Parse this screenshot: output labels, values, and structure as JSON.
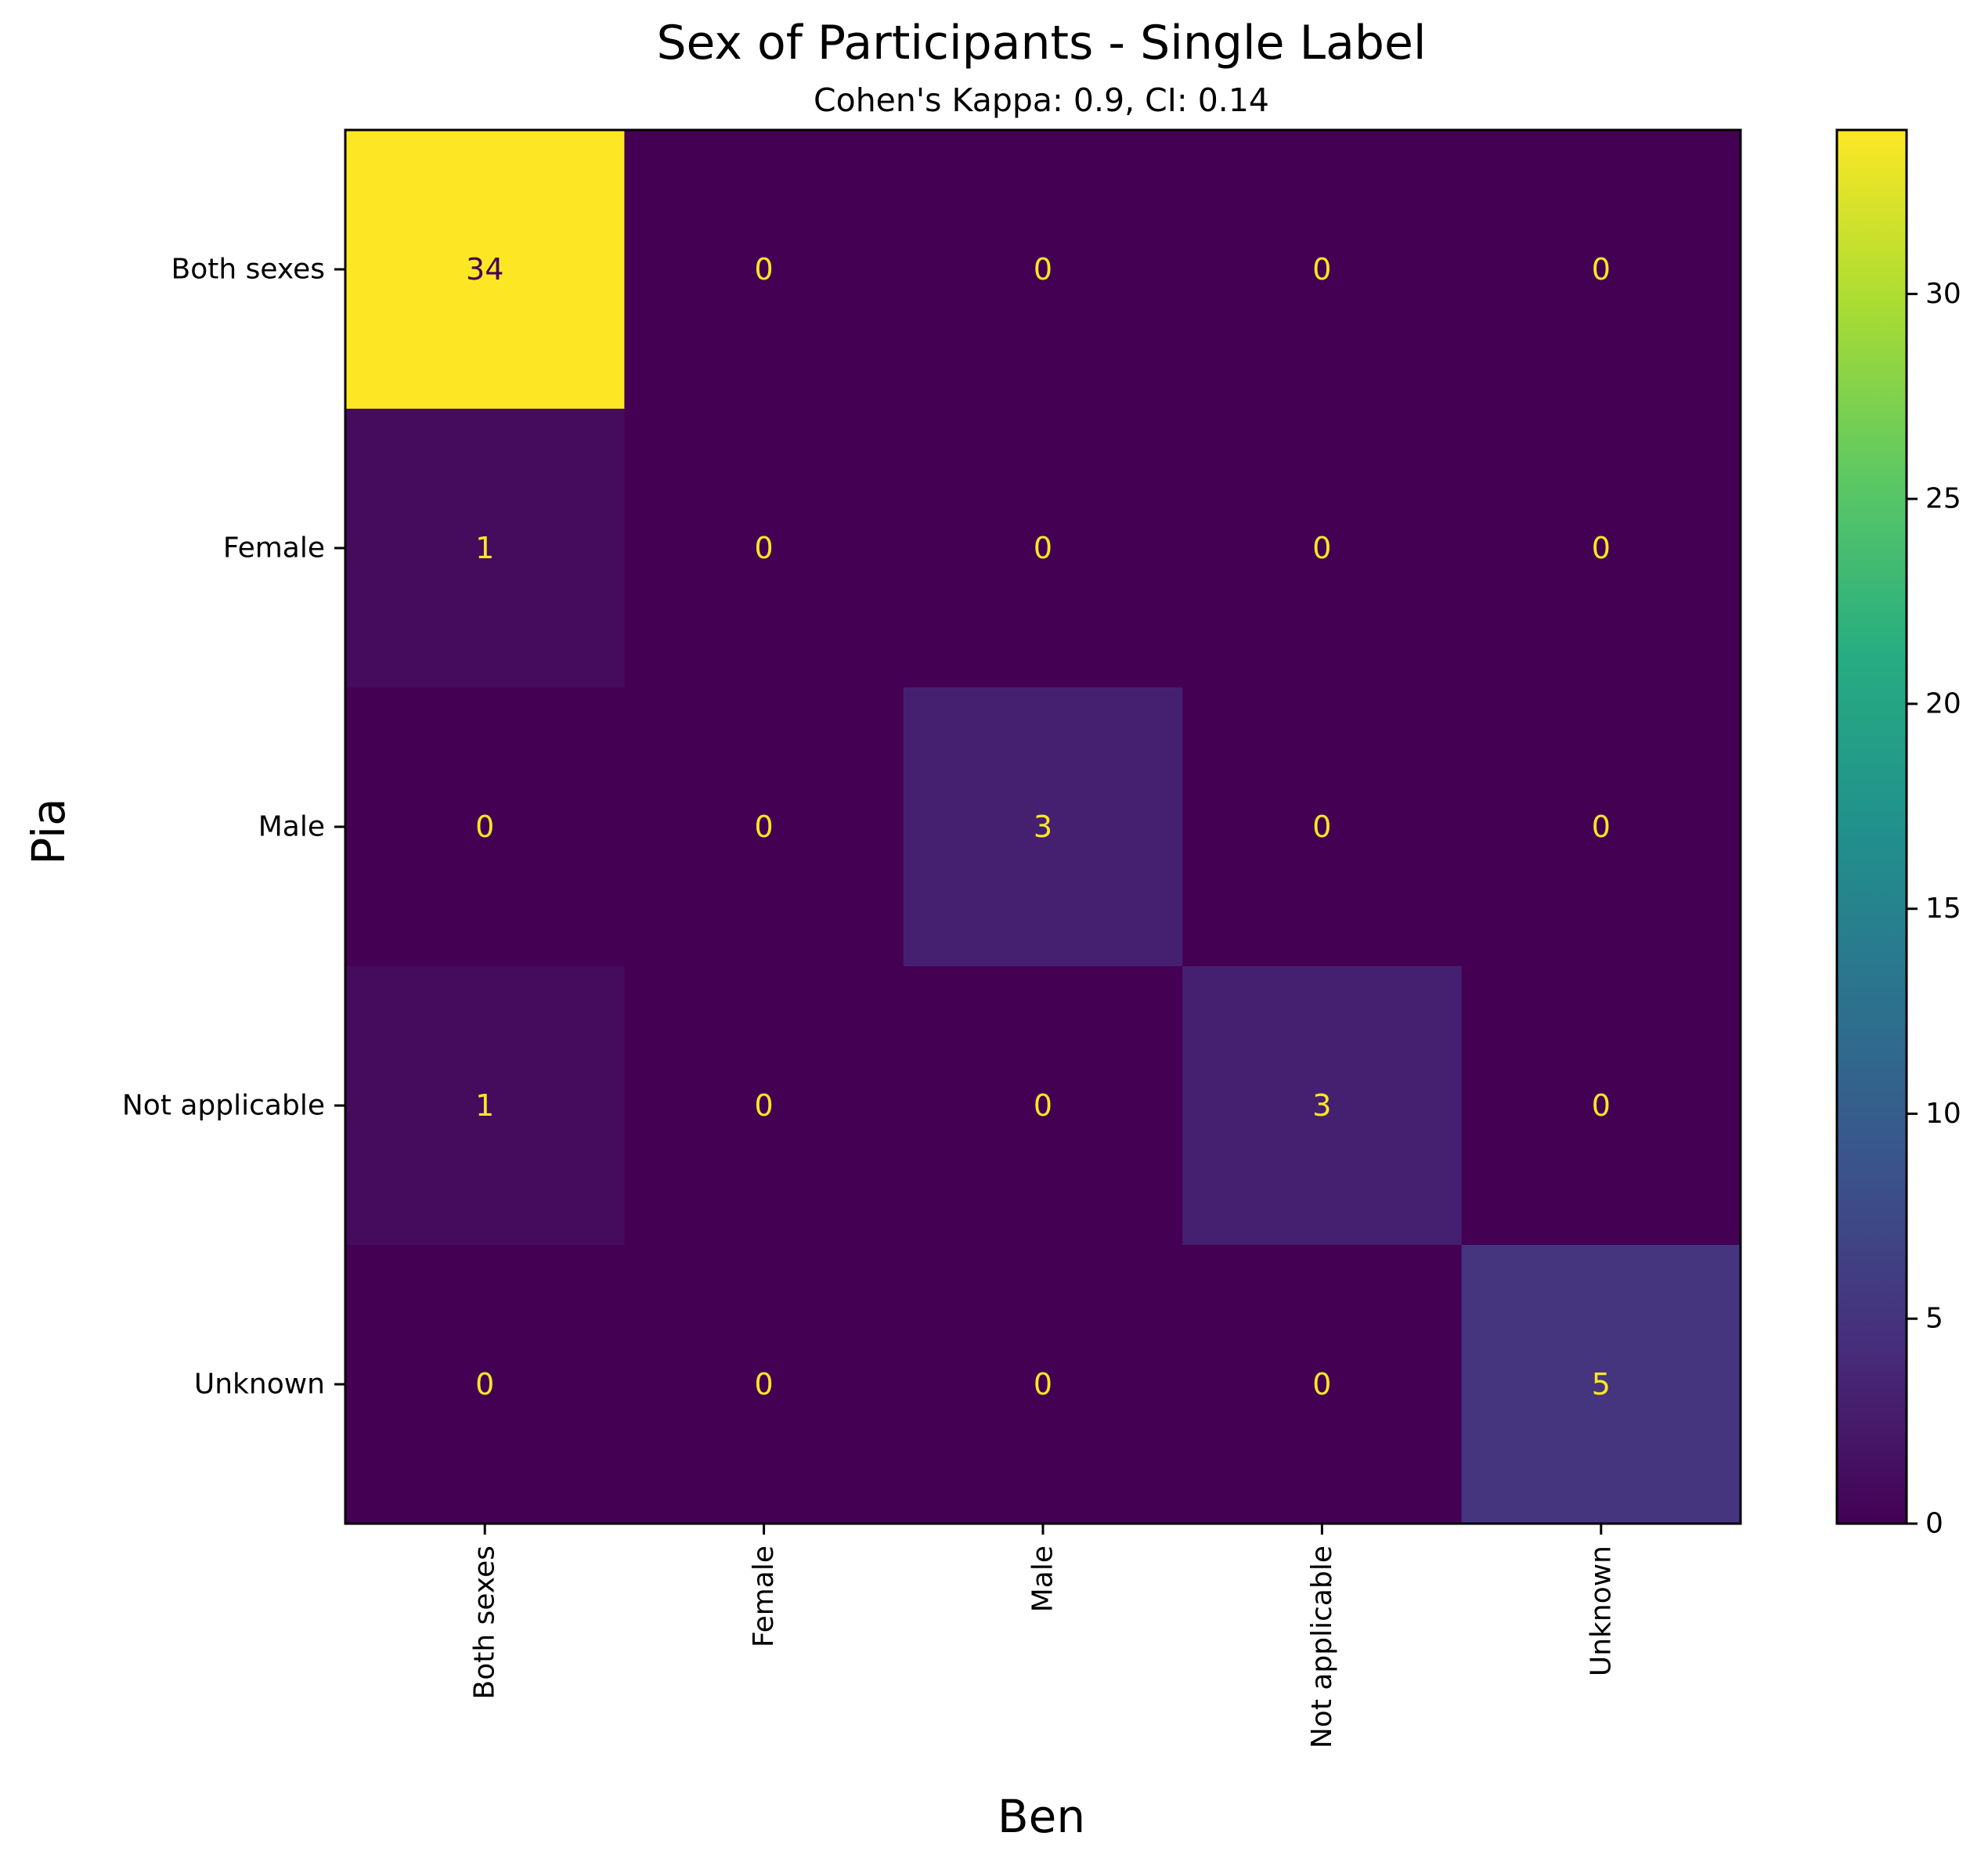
{
  "chart_data": {
    "type": "heatmap",
    "title": "Sex of Participants - Single Label",
    "subtitle": "Cohen's Kappa: 0.9, CI: 0.14",
    "xlabel": "Ben",
    "ylabel": "Pia",
    "x_categories": [
      "Both sexes",
      "Female",
      "Male",
      "Not applicable",
      "Unknown"
    ],
    "y_categories": [
      "Both sexes",
      "Female",
      "Male",
      "Not applicable",
      "Unknown"
    ],
    "values": [
      [
        34,
        0,
        0,
        0,
        0
      ],
      [
        1,
        0,
        0,
        0,
        0
      ],
      [
        0,
        0,
        3,
        0,
        0
      ],
      [
        1,
        0,
        0,
        3,
        0
      ],
      [
        0,
        0,
        0,
        0,
        5
      ]
    ],
    "colormap": "viridis",
    "color_range": [
      0,
      34
    ],
    "colorbar_ticks": [
      0,
      5,
      10,
      15,
      20,
      25,
      30
    ],
    "cell_label_color": "#fde725",
    "grid": false
  }
}
